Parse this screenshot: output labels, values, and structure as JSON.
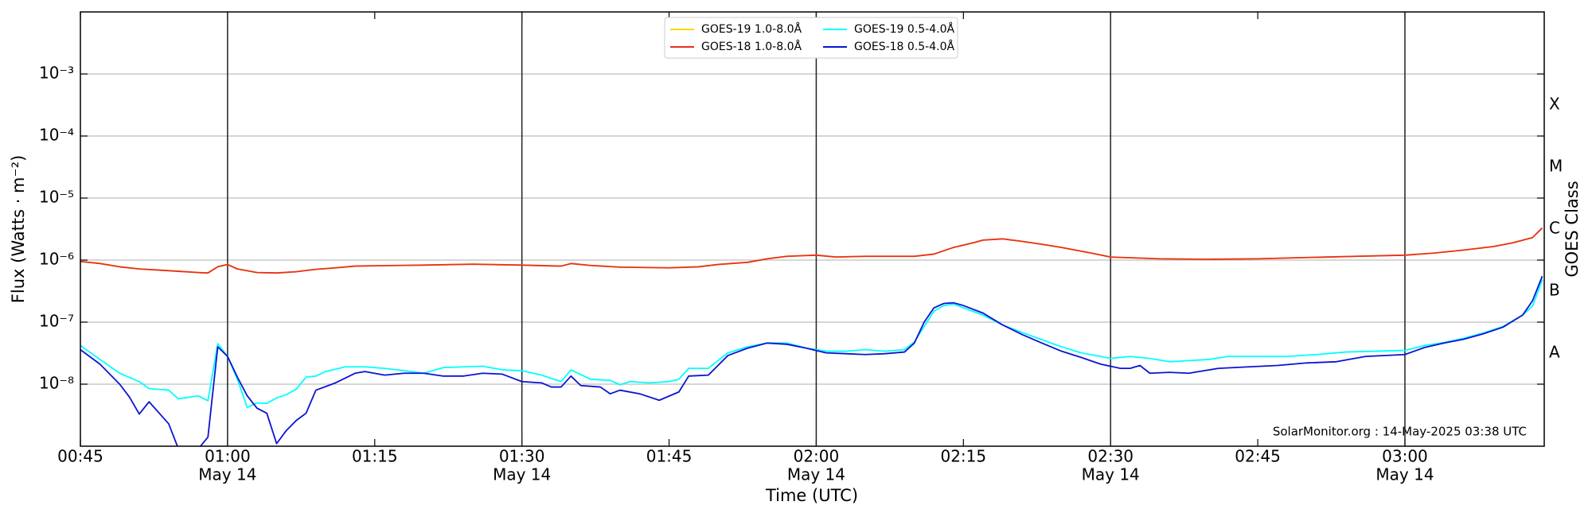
{
  "chart_data": {
    "type": "line",
    "ylabel": "Flux (Watts · m⁻²)",
    "xlabel": "Time (UTC)",
    "y2label": "GOES Class",
    "annotation": "SolarMonitor.org : 14-May-2025 03:38 UTC",
    "yscale": "log",
    "grid": true,
    "legend": "upper center",
    "xlim": [
      45,
      194.2
    ],
    "ylim": [
      1e-09,
      0.01
    ],
    "xticks": [
      {
        "value": 45,
        "label": "00:45"
      },
      {
        "value": 60,
        "label": "01:00",
        "sublabel": "May 14"
      },
      {
        "value": 75,
        "label": "01:15"
      },
      {
        "value": 90,
        "label": "01:30",
        "sublabel": "May 14"
      },
      {
        "value": 105,
        "label": "01:45"
      },
      {
        "value": 120,
        "label": "02:00",
        "sublabel": "May 14"
      },
      {
        "value": 135,
        "label": "02:15"
      },
      {
        "value": 150,
        "label": "02:30",
        "sublabel": "May 14"
      },
      {
        "value": 165,
        "label": "02:45"
      },
      {
        "value": 180,
        "label": "03:00",
        "sublabel": "May 14"
      }
    ],
    "vlines": [
      60,
      90,
      120,
      150,
      180
    ],
    "yticks": [
      {
        "value": 1e-08,
        "label": "10⁻⁸"
      },
      {
        "value": 1e-07,
        "label": "10⁻⁷"
      },
      {
        "value": 1e-06,
        "label": "10⁻⁶"
      },
      {
        "value": 1e-05,
        "label": "10⁻⁵"
      },
      {
        "value": 0.0001,
        "label": "10⁻⁴"
      },
      {
        "value": 0.001,
        "label": "10⁻³"
      }
    ],
    "class_labels": [
      {
        "value": 3.16e-08,
        "label": "A"
      },
      {
        "value": 3.16e-07,
        "label": "B"
      },
      {
        "value": 3.16e-06,
        "label": "C"
      },
      {
        "value": 3.16e-05,
        "label": "M"
      },
      {
        "value": 0.000316,
        "label": "X"
      }
    ],
    "series": [
      {
        "name": "GOES-19 1.0-8.0Å",
        "color": "#ffd700",
        "x": [
          45,
          47,
          49,
          51,
          53,
          55,
          57,
          58,
          59,
          60,
          61,
          63,
          65,
          67,
          69,
          71,
          73,
          75,
          80,
          85,
          90,
          94,
          95,
          97,
          100,
          105,
          108,
          110,
          113,
          115,
          117,
          120,
          122,
          125,
          130,
          132,
          134,
          136,
          137,
          139,
          141,
          143,
          145,
          148,
          150,
          155,
          160,
          165,
          170,
          175,
          180,
          183,
          186,
          189,
          191,
          193,
          194
        ],
        "values": [
          9.5e-07,
          8.8e-07,
          7.8e-07,
          7.2e-07,
          6.9e-07,
          6.6e-07,
          6.3e-07,
          6.2e-07,
          7.8e-07,
          8.5e-07,
          7.2e-07,
          6.3e-07,
          6.2e-07,
          6.5e-07,
          7.1e-07,
          7.5e-07,
          8e-07,
          8.1e-07,
          8.3e-07,
          8.6e-07,
          8.3e-07,
          8e-07,
          8.8e-07,
          8.2e-07,
          7.7e-07,
          7.5e-07,
          7.8e-07,
          8.5e-07,
          9.2e-07,
          1.05e-06,
          1.15e-06,
          1.2e-06,
          1.12e-06,
          1.15e-06,
          1.15e-06,
          1.25e-06,
          1.6e-06,
          1.9e-06,
          2.1e-06,
          2.2e-06,
          2e-06,
          1.8e-06,
          1.6e-06,
          1.3e-06,
          1.12e-06,
          1.05e-06,
          1.03e-06,
          1.05e-06,
          1.1e-06,
          1.15e-06,
          1.2e-06,
          1.3e-06,
          1.45e-06,
          1.65e-06,
          1.9e-06,
          2.3e-06,
          3.3e-06
        ]
      },
      {
        "name": "GOES-18 1.0-8.0Å",
        "color": "#e8301c",
        "x": [
          45,
          47,
          49,
          51,
          53,
          55,
          57,
          58,
          59,
          60,
          61,
          63,
          65,
          67,
          69,
          71,
          73,
          75,
          80,
          85,
          90,
          94,
          95,
          97,
          100,
          105,
          108,
          110,
          113,
          115,
          117,
          120,
          122,
          125,
          130,
          132,
          134,
          136,
          137,
          139,
          141,
          143,
          145,
          148,
          150,
          155,
          160,
          165,
          170,
          175,
          180,
          183,
          186,
          189,
          191,
          193,
          194
        ],
        "values": [
          9.5e-07,
          8.8e-07,
          7.8e-07,
          7.2e-07,
          6.9e-07,
          6.6e-07,
          6.3e-07,
          6.2e-07,
          7.8e-07,
          8.5e-07,
          7.2e-07,
          6.3e-07,
          6.2e-07,
          6.5e-07,
          7.1e-07,
          7.5e-07,
          8e-07,
          8.1e-07,
          8.3e-07,
          8.6e-07,
          8.3e-07,
          8e-07,
          8.8e-07,
          8.2e-07,
          7.7e-07,
          7.5e-07,
          7.8e-07,
          8.5e-07,
          9.2e-07,
          1.05e-06,
          1.15e-06,
          1.2e-06,
          1.12e-06,
          1.15e-06,
          1.15e-06,
          1.25e-06,
          1.6e-06,
          1.9e-06,
          2.1e-06,
          2.2e-06,
          2e-06,
          1.8e-06,
          1.6e-06,
          1.3e-06,
          1.12e-06,
          1.05e-06,
          1.03e-06,
          1.05e-06,
          1.1e-06,
          1.15e-06,
          1.2e-06,
          1.3e-06,
          1.45e-06,
          1.65e-06,
          1.9e-06,
          2.3e-06,
          3.3e-06
        ]
      },
      {
        "name": "GOES-19 0.5-4.0Å",
        "color": "#00ffff",
        "x": [
          45,
          47,
          49,
          51,
          52,
          54,
          55,
          57,
          58,
          59,
          60,
          61,
          62,
          63,
          64,
          65,
          66,
          67,
          68,
          69,
          70,
          72,
          74,
          76,
          78,
          80,
          82,
          84,
          86,
          88,
          90,
          92,
          94,
          95,
          97,
          99,
          100,
          101,
          103,
          105,
          106,
          107,
          109,
          111,
          113,
          115,
          117,
          119,
          121,
          123,
          125,
          127,
          129,
          130,
          131,
          132,
          133,
          134,
          135,
          137,
          139,
          141,
          143,
          145,
          147,
          149,
          150,
          152,
          154,
          156,
          158,
          160,
          162,
          165,
          168,
          171,
          174,
          177,
          180,
          182,
          184,
          186,
          188,
          190,
          192,
          193,
          194
        ],
        "values": [
          4.2e-08,
          2.5e-08,
          1.5e-08,
          1.1e-08,
          8.5e-09,
          8e-09,
          5.8e-09,
          6.5e-09,
          5.4e-09,
          4.5e-08,
          2.8e-08,
          1.2e-08,
          4.2e-09,
          5e-09,
          4.9e-09,
          6e-09,
          6.8e-09,
          8.3e-09,
          1.3e-08,
          1.35e-08,
          1.6e-08,
          1.9e-08,
          1.9e-08,
          1.8e-08,
          1.65e-08,
          1.5e-08,
          1.85e-08,
          1.9e-08,
          1.95e-08,
          1.7e-08,
          1.65e-08,
          1.4e-08,
          1.1e-08,
          1.7e-08,
          1.2e-08,
          1.15e-08,
          9.8e-09,
          1.1e-08,
          1.05e-08,
          1.1e-08,
          1.2e-08,
          1.8e-08,
          1.8e-08,
          3.2e-08,
          4e-08,
          4.6e-08,
          4.6e-08,
          3.8e-08,
          3.4e-08,
          3.4e-08,
          3.6e-08,
          3.4e-08,
          3.6e-08,
          4.8e-08,
          8.5e-08,
          1.5e-07,
          1.85e-07,
          1.95e-07,
          1.7e-07,
          1.3e-07,
          9e-08,
          6.8e-08,
          5.2e-08,
          4e-08,
          3.2e-08,
          2.8e-08,
          2.6e-08,
          2.8e-08,
          2.6e-08,
          2.3e-08,
          2.4e-08,
          2.5e-08,
          2.8e-08,
          2.8e-08,
          2.8e-08,
          3e-08,
          3.3e-08,
          3.4e-08,
          3.5e-08,
          4.2e-08,
          4.7e-08,
          5.5e-08,
          6.7e-08,
          8.5e-08,
          1.3e-07,
          1.8e-07,
          4.8e-07
        ]
      },
      {
        "name": "GOES-18 0.5-4.0Å",
        "color": "#0a14d2",
        "x": [
          45,
          47,
          49,
          50,
          51,
          52,
          54,
          55,
          57,
          58,
          59,
          60,
          61,
          62,
          63,
          64,
          65,
          66,
          67,
          68,
          69,
          71,
          73,
          74,
          76,
          78,
          80,
          82,
          84,
          86,
          88,
          90,
          92,
          93,
          94,
          95,
          96,
          98,
          99,
          100,
          102,
          104,
          106,
          107,
          109,
          111,
          113,
          115,
          117,
          119,
          121,
          123,
          125,
          127,
          129,
          130,
          131,
          132,
          133,
          134,
          135,
          137,
          139,
          141,
          143,
          145,
          147,
          149,
          151,
          152,
          153,
          154,
          156,
          158,
          159,
          161,
          164,
          167,
          170,
          173,
          176,
          180,
          182,
          184,
          186,
          188,
          190,
          192,
          193,
          194
        ],
        "values": [
          3.6e-08,
          2.1e-08,
          1e-08,
          6.2e-09,
          3.3e-09,
          5.2e-09,
          2.3e-09,
          9e-10,
          9e-10,
          1.4e-09,
          4e-08,
          2.8e-08,
          1.3e-08,
          6.5e-09,
          4.1e-09,
          3.4e-09,
          1.1e-09,
          1.8e-09,
          2.6e-09,
          3.4e-09,
          8e-09,
          1.05e-08,
          1.5e-08,
          1.6e-08,
          1.4e-08,
          1.5e-08,
          1.5e-08,
          1.35e-08,
          1.35e-08,
          1.5e-08,
          1.45e-08,
          1.1e-08,
          1.05e-08,
          9e-09,
          9e-09,
          1.35e-08,
          9.5e-09,
          9e-09,
          7e-09,
          8e-09,
          7e-09,
          5.5e-09,
          7.5e-09,
          1.35e-08,
          1.4e-08,
          2.9e-08,
          3.8e-08,
          4.6e-08,
          4.4e-08,
          3.8e-08,
          3.2e-08,
          3.1e-08,
          3e-08,
          3.1e-08,
          3.3e-08,
          4.6e-08,
          1e-07,
          1.7e-07,
          2e-07,
          2.05e-07,
          1.85e-07,
          1.4e-07,
          9e-08,
          6.3e-08,
          4.6e-08,
          3.4e-08,
          2.7e-08,
          2.1e-08,
          1.8e-08,
          1.8e-08,
          2e-08,
          1.5e-08,
          1.55e-08,
          1.5e-08,
          1.6e-08,
          1.8e-08,
          1.9e-08,
          2e-08,
          2.2e-08,
          2.3e-08,
          2.8e-08,
          3e-08,
          3.9e-08,
          4.6e-08,
          5.3e-08,
          6.5e-08,
          8.3e-08,
          1.3e-07,
          2.2e-07,
          5.5e-07
        ]
      }
    ]
  }
}
